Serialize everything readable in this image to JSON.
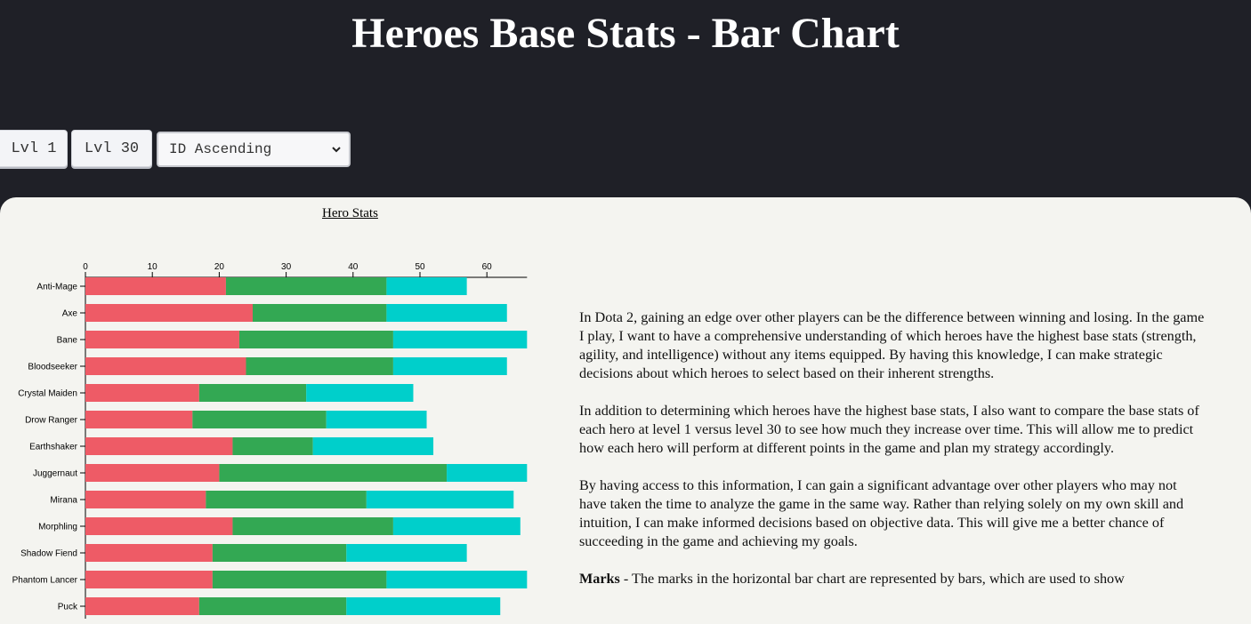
{
  "header": {
    "title": "Heroes Base Stats - Bar Chart"
  },
  "controls": {
    "lvl1_label": "Lvl 1",
    "lvl30_label": "Lvl 30",
    "sort_selected": "ID Ascending"
  },
  "chart_data": {
    "type": "bar",
    "orientation": "horizontal",
    "stacked": true,
    "title": "Hero Stats",
    "xlim": [
      0,
      66
    ],
    "xticks": [
      0,
      10,
      20,
      30,
      40,
      50,
      60
    ],
    "categories": [
      "Anti-Mage",
      "Axe",
      "Bane",
      "Bloodseeker",
      "Crystal Maiden",
      "Drow Ranger",
      "Earthshaker",
      "Juggernaut",
      "Mirana",
      "Morphling",
      "Shadow Fiend",
      "Phantom Lancer",
      "Puck"
    ],
    "series": [
      {
        "values": [
          21,
          25,
          23,
          24,
          17,
          16,
          22,
          20,
          18,
          22,
          19,
          19,
          17
        ],
        "color": "#ee5b66"
      },
      {
        "values": [
          24,
          20,
          23,
          22,
          16,
          20,
          12,
          34,
          24,
          24,
          20,
          26,
          22
        ],
        "color": "#33a853"
      },
      {
        "values": [
          12,
          18,
          20,
          17,
          16,
          15,
          18,
          12,
          22,
          19,
          18,
          21,
          23
        ],
        "color": "#00cfcb"
      }
    ],
    "grid": false,
    "axis_position": "top"
  },
  "description": {
    "p1": "In Dota 2, gaining an edge over other players can be the difference between winning and losing. In the game I play, I want to have a comprehensive understanding of which heroes have the highest base stats (strength, agility, and intelligence) without any items equipped. By having this knowledge, I can make strategic decisions about which heroes to select based on their inherent strengths.",
    "p2": "In addition to determining which heroes have the highest base stats, I also want to compare the base stats of each hero at level 1 versus level 30 to see how much they increase over time. This will allow me to predict how each hero will perform at different points in the game and plan my strategy accordingly.",
    "p3": "By having access to this information, I can gain a significant advantage over other players who may not have taken the time to analyze the game in the same way. Rather than relying solely on my own skill and intuition, I can make informed decisions based on objective data. This will give me a better chance of succeeding in the game and achieving my goals.",
    "marks_label": "Marks",
    "marks_text": " - The marks in the horizontal bar chart are represented by bars, which are used to show"
  }
}
